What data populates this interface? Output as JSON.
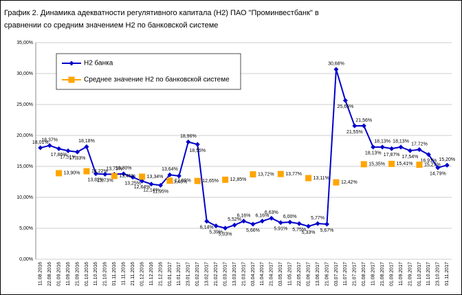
{
  "chart_data": {
    "type": "line",
    "title": [
      "График 2. Динамика адекватности регулятивного капитала (Н2) ПАО \"Проминвестбанк\" в",
      "сравнении со средним значением Н2 по банковской системе"
    ],
    "categories": [
      "11.08.2016",
      "22.08.2016",
      "01.09.2016",
      "11.09.2016",
      "21.09.2016",
      "01.10.2016",
      "11.10.2016",
      "21.10.2016",
      "01.11.2016",
      "11.11.2016",
      "21.11.2016",
      "01.12.2016",
      "11.12.2016",
      "21.12.2016",
      "01.01.2017",
      "11.01.2017",
      "23.01.2017",
      "01.02.2017",
      "13.02.2017",
      "21.02.2017",
      "01.03.2017",
      "13.03.2017",
      "21.03.2017",
      "03.04.2017",
      "11.04.2017",
      "21.04.2017",
      "03.05.2017",
      "11.05.2017",
      "22.05.2017",
      "01.06.2017",
      "13.06.2017",
      "21.06.2017",
      "03.07.2017",
      "11.07.2017",
      "21.07.2017",
      "01.08.2017",
      "11.08.2017",
      "21.08.2017",
      "01.09.2017",
      "11.09.2017",
      "21.09.2017",
      "01.10.2017",
      "11.10.2017",
      "23.10.2017",
      "01.11.2017"
    ],
    "series": [
      {
        "name": "Н2 банка",
        "color": "#0000cc",
        "marker": "diamond",
        "values": [
          18.01,
          18.37,
          17.86,
          17.51,
          17.33,
          18.18,
          13.82,
          13.73,
          13.73,
          13.8,
          13.25,
          12.64,
          12.14,
          11.95,
          13.64,
          13.46,
          18.96,
          18.55,
          6.14,
          5.39,
          5.03,
          5.52,
          6.16,
          5.66,
          6.16,
          6.63,
          5.91,
          6.0,
          5.75,
          5.33,
          5.77,
          5.67,
          30.68,
          25.65,
          21.55,
          21.56,
          18.13,
          18.13,
          17.87,
          18.13,
          17.54,
          17.72,
          16.91,
          14.79,
          15.2
        ],
        "value_labels": [
          "18,01%",
          "18,37%",
          "17,86%",
          "17,51%",
          "17,33%",
          "18,18%",
          "13,82%",
          "13,73%",
          "13,73%",
          "13,80%",
          "13,25%",
          "12,64%",
          "12,14%",
          "11,95%",
          "13,64%",
          "13,46%",
          "18,96%",
          "18,55%",
          "6,14%",
          "5,39%",
          "5,03%",
          "5,52%",
          "6,16%",
          "5,66%",
          "6,16%",
          "6,63%",
          "5,91%",
          "6,00%",
          "5,75%",
          "5,33%",
          "5,77%",
          "5,67%",
          "30,68%",
          "25,65%",
          "21,55%",
          "21,56%",
          "18,13%",
          "18,13%",
          "17,87%",
          "18,13%",
          "17,54%",
          "17,72%",
          "16,91%",
          "14,79%",
          "15,20%"
        ]
      },
      {
        "name": "Среднее значение Н2 по банковской системе",
        "color": "#ffa500",
        "marker": "square",
        "values": [
          null,
          null,
          13.9,
          null,
          null,
          14.22,
          null,
          null,
          13.45,
          null,
          null,
          13.34,
          null,
          null,
          12.69,
          null,
          null,
          12.65,
          null,
          null,
          12.85,
          null,
          null,
          13.72,
          null,
          null,
          13.77,
          null,
          null,
          13.11,
          null,
          null,
          12.42,
          null,
          null,
          15.35,
          null,
          null,
          15.41,
          null,
          null,
          15.27,
          null,
          null,
          null
        ],
        "value_labels": [
          null,
          null,
          "13,90%",
          null,
          null,
          "14,22%",
          null,
          null,
          "13,45%",
          null,
          null,
          "13,34%",
          null,
          null,
          "12,69%",
          null,
          null,
          "12,65%",
          null,
          null,
          "12,85%",
          null,
          null,
          "13,72%",
          null,
          null,
          "13,77%",
          null,
          null,
          "13,11%",
          null,
          null,
          "12,42%",
          null,
          null,
          "15,35%",
          null,
          null,
          "15,41%",
          null,
          null,
          "15,27%",
          null,
          null,
          null
        ]
      }
    ],
    "ylim": [
      0,
      35
    ],
    "yticks": [
      {
        "value": 0,
        "label": "0,00%"
      },
      {
        "value": 5,
        "label": "5,00%"
      },
      {
        "value": 10,
        "label": "10,00%"
      },
      {
        "value": 15,
        "label": "15,00%"
      },
      {
        "value": 20,
        "label": "20,00%"
      },
      {
        "value": 25,
        "label": "25,00%"
      },
      {
        "value": 30,
        "label": "30,00%"
      },
      {
        "value": 35,
        "label": "35,00%"
      }
    ],
    "grid": true,
    "legend": "upper left"
  }
}
